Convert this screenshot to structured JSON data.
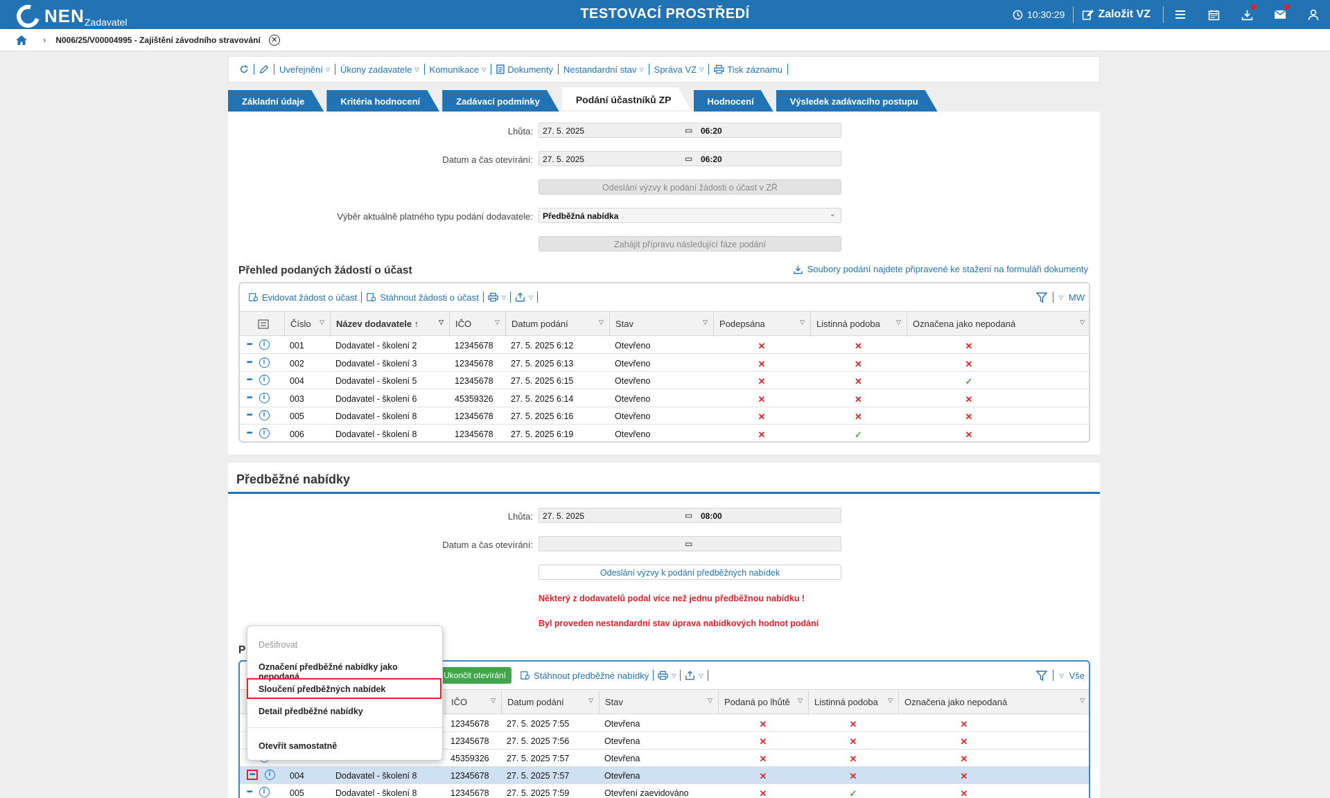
{
  "header": {
    "logo": "NEN",
    "logo_sub": "Zadavatel",
    "title": "TESTOVACÍ PROSTŘEDÍ",
    "clock": "10:30:29",
    "create_label": "Založit VZ"
  },
  "breadcrumb": {
    "text": "N006/25/V00004995 - Zajištění závodního stravování"
  },
  "toolbar": {
    "items": [
      "Uveřejnění",
      "Úkony zadavatele",
      "Komunikace",
      "Dokumenty",
      "Nestandardní stav",
      "Správa VZ",
      "Tisk záznamu"
    ]
  },
  "tabs": [
    "Základní údaje",
    "Kritéria hodnocení",
    "Zadávací podmínky",
    "Podání účastníků ZP",
    "Hodnocení",
    "Výsledek zadávacího postupu"
  ],
  "section1": {
    "lhuta_label": "Lhůta:",
    "lhuta_date": "27. 5. 2025",
    "lhuta_time": "06:20",
    "open_label": "Datum a čas otevírání:",
    "open_date": "27. 5. 2025",
    "open_time": "06:20",
    "invite_btn": "Odeslání výzvy k podání žádosti o účast v ZŘ",
    "type_label": "Výběr aktuálně platného typu podání dodavatele:",
    "type_value": "Předběžná nabídka",
    "next_phase_btn": "Zahájit přípravu následující fáze podání",
    "overview_title": "Přehled podaných žádostí o účast",
    "download_link": "Soubory podání najdete připravené ke stažení na formuláři dokumenty",
    "grid_tools": [
      "Evidovat žádost o účast",
      "Stáhnout žádosti o účast"
    ],
    "grid_filter_label": "MW",
    "columns": [
      "Číslo",
      "Název dodavatele",
      "IČO",
      "Datum podání",
      "Stav",
      "Podepsána",
      "Listinná podoba",
      "Označena jako nepodaná"
    ],
    "rows": [
      {
        "cislo": "001",
        "nazev": "Dodavatel - školení 2",
        "ico": "12345678",
        "datum": "27. 5. 2025 6:12",
        "stav": "Otevřeno",
        "podepsana": "✕",
        "listinna": "✕",
        "nepodana": "✕"
      },
      {
        "cislo": "002",
        "nazev": "Dodavatel - školení 3",
        "ico": "12345678",
        "datum": "27. 5. 2025 6:13",
        "stav": "Otevřeno",
        "podepsana": "✕",
        "listinna": "✕",
        "nepodana": "✕"
      },
      {
        "cislo": "004",
        "nazev": "Dodavatel - školení 5",
        "ico": "12345678",
        "datum": "27. 5. 2025 6:15",
        "stav": "Otevřeno",
        "podepsana": "✕",
        "listinna": "✕",
        "nepodana": "✓"
      },
      {
        "cislo": "003",
        "nazev": "Dodavatel - školení 6",
        "ico": "45359326",
        "datum": "27. 5. 2025 6:14",
        "stav": "Otevřeno",
        "podepsana": "✕",
        "listinna": "✕",
        "nepodana": "✕"
      },
      {
        "cislo": "005",
        "nazev": "Dodavatel - školení 8",
        "ico": "12345678",
        "datum": "27. 5. 2025 6:16",
        "stav": "Otevřeno",
        "podepsana": "✕",
        "listinna": "✕",
        "nepodana": "✕"
      },
      {
        "cislo": "006",
        "nazev": "Dodavatel - školení 8",
        "ico": "12345678",
        "datum": "27. 5. 2025 6:19",
        "stav": "Otevřeno",
        "podepsana": "✕",
        "listinna": "✓",
        "nepodana": "✕"
      }
    ]
  },
  "section2": {
    "title": "Předběžné nabídky",
    "lhuta_label": "Lhůta:",
    "lhuta_date": "27. 5. 2025",
    "lhuta_time": "08:00",
    "open_label": "Datum a čas otevírání:",
    "invite_btn": "Odeslání výzvy k podání předběžných nabídek",
    "warning1": "Některý z dodavatelů podal více než jednu předběžnou nabídku !",
    "warning2": "Byl proveden nestandardní stav úprava nabídkových hodnot podání",
    "subtitle_initial": "P",
    "grid_tools": [
      "Ukončit otevírání",
      "Stáhnout předběžné nabídky"
    ],
    "grid_filter_label": "Vše",
    "columns": [
      "IČO",
      "Datum podání",
      "Stav",
      "Podaná po lhůtě",
      "Listinná podoba",
      "Označena jako nepodaná"
    ],
    "rows": [
      {
        "cislo": "",
        "nazev": "",
        "ico": "12345678",
        "datum": "27. 5. 2025 7:55",
        "stav": "Otevřena",
        "po_lhute": "✕",
        "listinna": "✕",
        "nepodana": "✕"
      },
      {
        "cislo": "",
        "nazev": "",
        "ico": "12345678",
        "datum": "27. 5. 2025 7:56",
        "stav": "Otevřena",
        "po_lhute": "✕",
        "listinna": "✕",
        "nepodana": "✕"
      },
      {
        "cislo": "",
        "nazev": "",
        "ico": "45359326",
        "datum": "27. 5. 2025 7:57",
        "stav": "Otevřena",
        "po_lhute": "✕",
        "listinna": "✕",
        "nepodana": "✕"
      },
      {
        "cislo": "004",
        "nazev": "Dodavatel - školení 8",
        "ico": "12345678",
        "datum": "27. 5. 2025 7:57",
        "stav": "Otevřena",
        "po_lhute": "✕",
        "listinna": "✕",
        "nepodana": "✕"
      },
      {
        "cislo": "005",
        "nazev": "Dodavatel - školení 8",
        "ico": "12345678",
        "datum": "27. 5. 2025 7:59",
        "stav": "Otevření zaevidováno",
        "po_lhute": "✕",
        "listinna": "✓",
        "nepodana": "✕"
      }
    ]
  },
  "context_menu": {
    "items": [
      "Dešifrovat",
      "Označení předběžné nabídky jako nepodaná",
      "Sloučení předběžných nabídek",
      "Detail předběžné nabídky",
      "Otevřít samostatně"
    ]
  },
  "icons": {
    "dots": "•••",
    "info": "i",
    "close": "✕",
    "sort_up": "↑",
    "filter_caret": "▽"
  },
  "colors": {
    "brand": "#2273b3",
    "error": "#d9262c",
    "success": "#3fa64a",
    "selected_row": "#cfe0f3"
  }
}
